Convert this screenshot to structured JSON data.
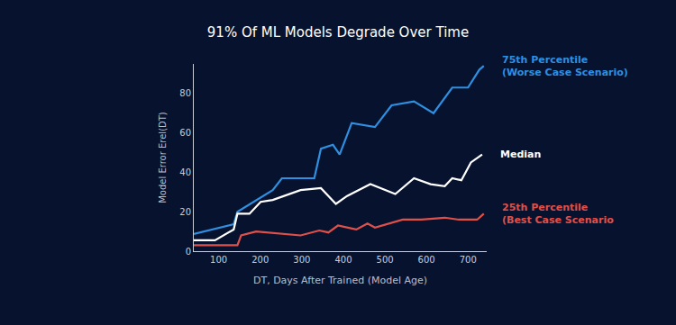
{
  "chart_data": {
    "type": "line",
    "title": "91% Of ML Models Degrade Over Time",
    "x_label": "DT, Days After Trained (Model Age)",
    "y_label": "Model Error Erel(DT)",
    "xlim": [
      40,
      745
    ],
    "xticks": [
      100,
      200,
      300,
      400,
      500,
      600,
      700
    ],
    "ylim": [
      0,
      95
    ],
    "yticks": [
      0,
      20,
      40,
      60,
      80
    ],
    "grid": false,
    "series": [
      {
        "name": "75th Percentile (Worse Case Scenario)",
        "color": "#2f8fe0",
        "x": [
          40,
          136,
          145,
          230,
          252,
          330,
          346,
          375,
          391,
          420,
          476,
          516,
          570,
          617,
          662,
          700,
          727,
          738
        ],
        "values": [
          8.7,
          13.7,
          20,
          31,
          37,
          37,
          52,
          54,
          49,
          65,
          63,
          74,
          76,
          70,
          83,
          83,
          92,
          94
        ]
      },
      {
        "name": "Median",
        "color": "#ffffff",
        "x": [
          40,
          91,
          136,
          145,
          174,
          201,
          230,
          297,
          346,
          382,
          409,
          465,
          525,
          570,
          610,
          644,
          662,
          684,
          707,
          734
        ],
        "values": [
          5.5,
          5.5,
          11,
          19,
          19,
          25,
          26,
          31,
          32,
          24,
          28,
          34,
          29,
          37,
          34,
          33,
          37,
          36,
          45,
          49
        ]
      },
      {
        "name": "25th Percentile (Best Case Scenario",
        "color": "#e0504a",
        "x": [
          40,
          96,
          145,
          154,
          190,
          297,
          342,
          364,
          387,
          431,
          458,
          476,
          543,
          588,
          644,
          678,
          722,
          738
        ],
        "values": [
          3,
          3,
          3,
          8,
          10,
          8,
          10.5,
          9.5,
          13,
          11,
          14,
          12,
          16,
          16,
          17,
          16,
          16,
          19
        ]
      }
    ]
  }
}
